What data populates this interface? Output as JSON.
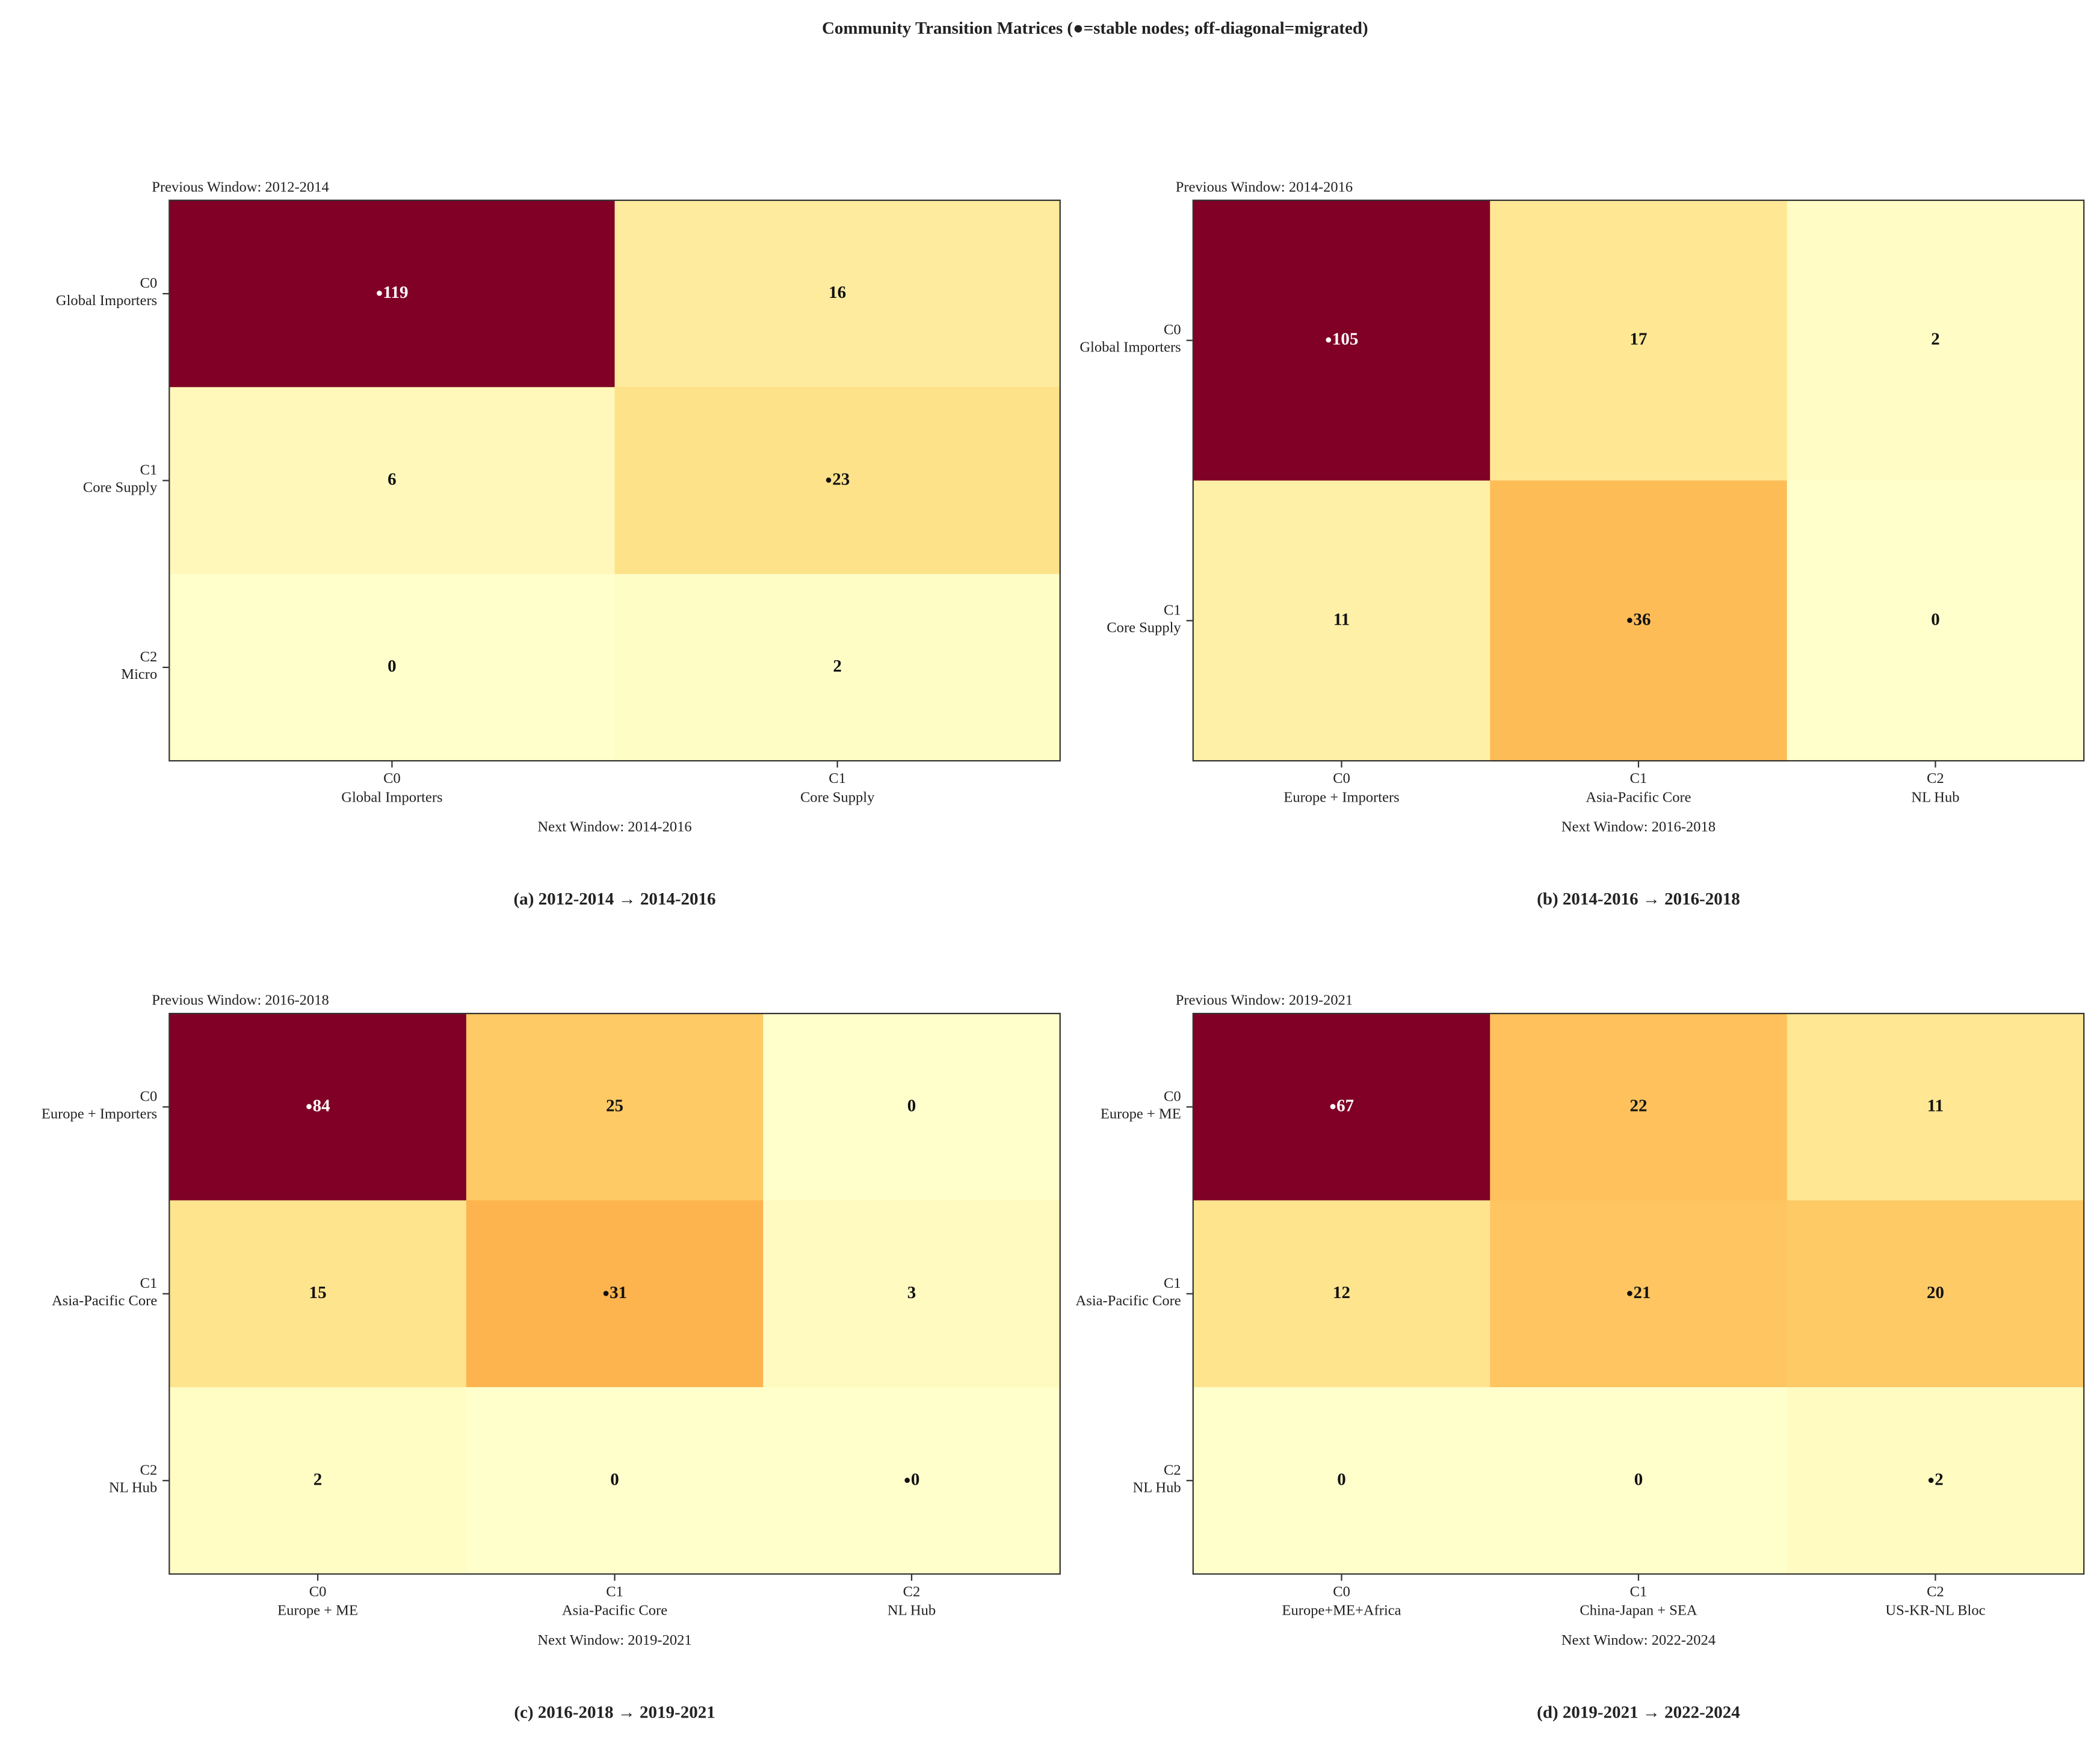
{
  "title": "Community Transition Matrices  (●=stable nodes; off-diagonal=migrated)",
  "stable_marker": "●",
  "colormap": "YlOrRd",
  "chart_data": [
    {
      "type": "heatmap",
      "caption": "(a) 2012-2014 → 2014-2016",
      "y_label": "Previous Window: 2012-2014",
      "x_label": "Next Window: 2014-2016",
      "y_categories": [
        {
          "id": "C0",
          "name": "Global Importers"
        },
        {
          "id": "C1",
          "name": "Core Supply"
        },
        {
          "id": "C2",
          "name": "Micro"
        }
      ],
      "x_categories": [
        {
          "id": "C0",
          "name": "Global Importers"
        },
        {
          "id": "C1",
          "name": "Core Supply"
        }
      ],
      "values": [
        [
          119,
          16
        ],
        [
          6,
          23
        ],
        [
          0,
          2
        ]
      ]
    },
    {
      "type": "heatmap",
      "caption": "(b) 2014-2016 → 2016-2018",
      "y_label": "Previous Window: 2014-2016",
      "x_label": "Next Window: 2016-2018",
      "y_categories": [
        {
          "id": "C0",
          "name": "Global Importers"
        },
        {
          "id": "C1",
          "name": "Core Supply"
        }
      ],
      "x_categories": [
        {
          "id": "C0",
          "name": "Europe + Importers"
        },
        {
          "id": "C1",
          "name": "Asia-Pacific Core"
        },
        {
          "id": "C2",
          "name": "NL Hub"
        }
      ],
      "values": [
        [
          105,
          17,
          2
        ],
        [
          11,
          36,
          0
        ]
      ]
    },
    {
      "type": "heatmap",
      "caption": "(c) 2016-2018 → 2019-2021",
      "y_label": "Previous Window: 2016-2018",
      "x_label": "Next Window: 2019-2021",
      "y_categories": [
        {
          "id": "C0",
          "name": "Europe + Importers"
        },
        {
          "id": "C1",
          "name": "Asia-Pacific Core"
        },
        {
          "id": "C2",
          "name": "NL Hub"
        }
      ],
      "x_categories": [
        {
          "id": "C0",
          "name": "Europe + ME"
        },
        {
          "id": "C1",
          "name": "Asia-Pacific Core"
        },
        {
          "id": "C2",
          "name": "NL Hub"
        }
      ],
      "values": [
        [
          84,
          25,
          0
        ],
        [
          15,
          31,
          3
        ],
        [
          2,
          0,
          0
        ]
      ]
    },
    {
      "type": "heatmap",
      "caption": "(d) 2019-2021 → 2022-2024",
      "y_label": "Previous Window: 2019-2021",
      "x_label": "Next Window: 2022-2024",
      "y_categories": [
        {
          "id": "C0",
          "name": "Europe + ME"
        },
        {
          "id": "C1",
          "name": "Asia-Pacific Core"
        },
        {
          "id": "C2",
          "name": "NL Hub"
        }
      ],
      "x_categories": [
        {
          "id": "C0",
          "name": "Europe+ME+Africa"
        },
        {
          "id": "C1",
          "name": "China-Japan + SEA"
        },
        {
          "id": "C2",
          "name": "US-KR-NL Bloc"
        }
      ],
      "values": [
        [
          67,
          22,
          11
        ],
        [
          12,
          21,
          20
        ],
        [
          0,
          0,
          2
        ]
      ]
    }
  ]
}
